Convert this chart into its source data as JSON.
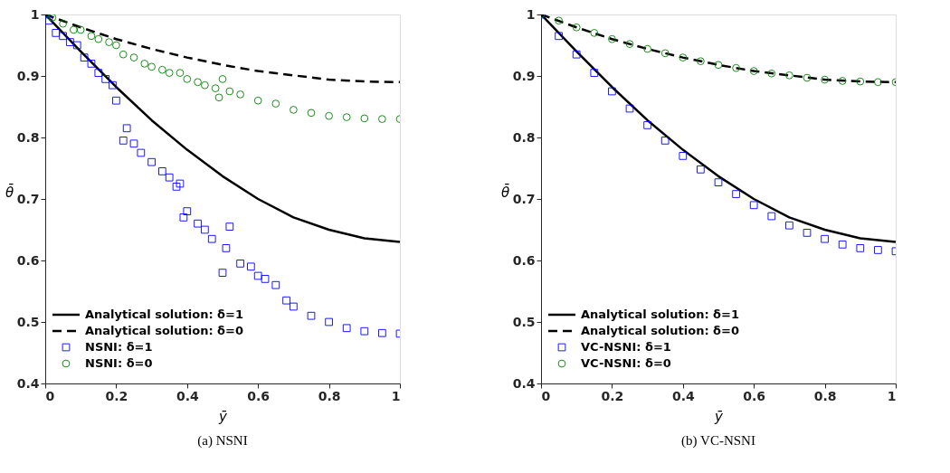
{
  "chart_data": [
    {
      "type": "line",
      "title": "(a) NSNI",
      "xlabel": "ȳ",
      "ylabel": "θ̄",
      "xlim": [
        0,
        1
      ],
      "ylim": [
        0.4,
        1
      ],
      "xticks": [
        0,
        0.2,
        0.4,
        0.6,
        0.8,
        1
      ],
      "yticks": [
        0.4,
        0.5,
        0.6,
        0.7,
        0.8,
        0.9,
        1
      ],
      "grid": false,
      "legend": "bottom left",
      "series": [
        {
          "name": "Analytical solution: δ=1",
          "line_style": "solid",
          "color": "#000000",
          "x": [
            0,
            0.1,
            0.2,
            0.3,
            0.4,
            0.5,
            0.6,
            0.7,
            0.8,
            0.9,
            1
          ],
          "values": [
            1.0,
            0.94,
            0.882,
            0.828,
            0.78,
            0.737,
            0.7,
            0.67,
            0.65,
            0.636,
            0.63
          ]
        },
        {
          "name": "Analytical solution: δ=0",
          "line_style": "dashed",
          "color": "#000000",
          "x": [
            0,
            0.1,
            0.2,
            0.3,
            0.4,
            0.5,
            0.6,
            0.7,
            0.8,
            0.9,
            1
          ],
          "values": [
            1.0,
            0.979,
            0.96,
            0.944,
            0.93,
            0.918,
            0.908,
            0.901,
            0.894,
            0.891,
            0.89
          ]
        },
        {
          "name": "NSNI: δ=1",
          "type": "scatter",
          "marker": "square",
          "color": "#0000ff",
          "x": [
            0,
            0.01,
            0.03,
            0.05,
            0.07,
            0.09,
            0.11,
            0.13,
            0.15,
            0.17,
            0.19,
            0.2,
            0.22,
            0.23,
            0.25,
            0.27,
            0.3,
            0.33,
            0.35,
            0.37,
            0.38,
            0.39,
            0.4,
            0.43,
            0.45,
            0.47,
            0.5,
            0.51,
            0.52,
            0.55,
            0.58,
            0.6,
            0.62,
            0.65,
            0.68,
            0.7,
            0.75,
            0.8,
            0.85,
            0.9,
            0.95,
            1.0
          ],
          "values": [
            1.0,
            0.99,
            0.97,
            0.965,
            0.955,
            0.95,
            0.93,
            0.92,
            0.905,
            0.895,
            0.885,
            0.86,
            0.795,
            0.815,
            0.79,
            0.775,
            0.76,
            0.745,
            0.735,
            0.72,
            0.725,
            0.67,
            0.68,
            0.66,
            0.65,
            0.635,
            0.58,
            0.62,
            0.655,
            0.595,
            0.59,
            0.575,
            0.57,
            0.56,
            0.535,
            0.525,
            0.51,
            0.5,
            0.49,
            0.485,
            0.482,
            0.481
          ]
        },
        {
          "name": "NSNI: δ=0",
          "type": "scatter",
          "marker": "circle",
          "color": "#008000",
          "x": [
            0,
            0.02,
            0.05,
            0.08,
            0.1,
            0.13,
            0.15,
            0.18,
            0.2,
            0.22,
            0.25,
            0.28,
            0.3,
            0.33,
            0.35,
            0.38,
            0.4,
            0.43,
            0.45,
            0.48,
            0.49,
            0.5,
            0.52,
            0.55,
            0.6,
            0.65,
            0.7,
            0.75,
            0.8,
            0.85,
            0.9,
            0.95,
            1.0
          ],
          "values": [
            1.0,
            0.995,
            0.985,
            0.975,
            0.975,
            0.965,
            0.96,
            0.955,
            0.95,
            0.935,
            0.93,
            0.92,
            0.915,
            0.91,
            0.905,
            0.905,
            0.895,
            0.89,
            0.885,
            0.88,
            0.865,
            0.895,
            0.875,
            0.87,
            0.86,
            0.855,
            0.845,
            0.84,
            0.835,
            0.833,
            0.831,
            0.83,
            0.83
          ]
        }
      ]
    },
    {
      "type": "line",
      "title": "(b) VC-NSNI",
      "xlabel": "ȳ",
      "ylabel": "θ̄",
      "xlim": [
        0,
        1
      ],
      "ylim": [
        0.4,
        1
      ],
      "xticks": [
        0,
        0.2,
        0.4,
        0.6,
        0.8,
        1
      ],
      "yticks": [
        0.4,
        0.5,
        0.6,
        0.7,
        0.8,
        0.9,
        1
      ],
      "grid": false,
      "legend": "bottom left",
      "series": [
        {
          "name": "Analytical solution: δ=1",
          "line_style": "solid",
          "color": "#000000",
          "x": [
            0,
            0.1,
            0.2,
            0.3,
            0.4,
            0.5,
            0.6,
            0.7,
            0.8,
            0.9,
            1
          ],
          "values": [
            1.0,
            0.94,
            0.882,
            0.828,
            0.78,
            0.737,
            0.7,
            0.67,
            0.65,
            0.636,
            0.63
          ]
        },
        {
          "name": "Analytical solution: δ=0",
          "line_style": "dashed",
          "color": "#000000",
          "x": [
            0,
            0.1,
            0.2,
            0.3,
            0.4,
            0.5,
            0.6,
            0.7,
            0.8,
            0.9,
            1
          ],
          "values": [
            1.0,
            0.979,
            0.96,
            0.944,
            0.93,
            0.918,
            0.908,
            0.901,
            0.894,
            0.891,
            0.89
          ]
        },
        {
          "name": "VC-NSNI: δ=1",
          "type": "scatter",
          "marker": "square",
          "color": "#0000ff",
          "x": [
            0,
            0.05,
            0.1,
            0.15,
            0.2,
            0.25,
            0.3,
            0.35,
            0.4,
            0.45,
            0.5,
            0.55,
            0.6,
            0.65,
            0.7,
            0.75,
            0.8,
            0.85,
            0.9,
            0.95,
            1.0
          ],
          "values": [
            1.0,
            0.965,
            0.935,
            0.905,
            0.875,
            0.847,
            0.82,
            0.795,
            0.77,
            0.748,
            0.727,
            0.708,
            0.69,
            0.672,
            0.657,
            0.645,
            0.635,
            0.626,
            0.62,
            0.617,
            0.615
          ]
        },
        {
          "name": "VC-NSNI: δ=0",
          "type": "scatter",
          "marker": "circle",
          "color": "#008000",
          "x": [
            0,
            0.05,
            0.1,
            0.15,
            0.2,
            0.25,
            0.3,
            0.35,
            0.4,
            0.45,
            0.5,
            0.55,
            0.6,
            0.65,
            0.7,
            0.75,
            0.8,
            0.85,
            0.9,
            0.95,
            1.0
          ],
          "values": [
            1.0,
            0.99,
            0.979,
            0.97,
            0.96,
            0.952,
            0.944,
            0.937,
            0.93,
            0.924,
            0.918,
            0.913,
            0.908,
            0.904,
            0.901,
            0.897,
            0.894,
            0.892,
            0.891,
            0.89,
            0.89
          ]
        }
      ]
    }
  ]
}
